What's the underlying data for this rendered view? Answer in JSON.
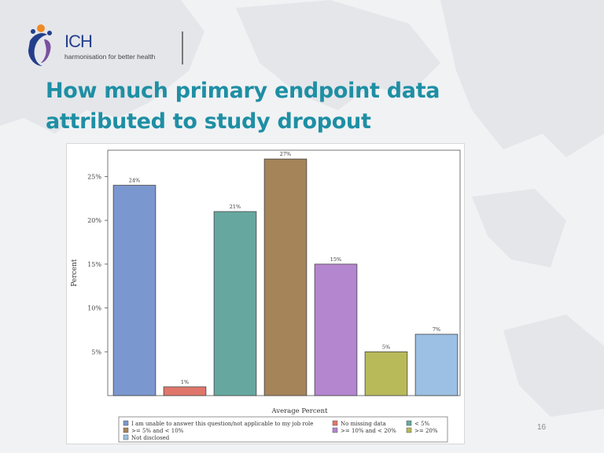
{
  "logo": {
    "name": "ICH",
    "tagline": "harmonisation for better health"
  },
  "title_lines": [
    "How much primary endpoint data",
    "attributed to study dropout"
  ],
  "page_number": "16",
  "colors": {
    "title": "#1e8fa4",
    "logo_blue": "#243e8c",
    "logo_orange": "#f08a24"
  },
  "chart_data": {
    "type": "bar",
    "ylabel": "Percent",
    "xlabel": "Average Percent",
    "ylim": [
      0,
      28
    ],
    "yticks": [
      5,
      10,
      15,
      20,
      25
    ],
    "ytick_labels": [
      "5%",
      "10%",
      "15%",
      "20%",
      "25%"
    ],
    "grid": false,
    "legend_position": "bottom",
    "bars": [
      {
        "category": "I am unable to answer this question/not applicable to my job role",
        "value": 24,
        "label": "24%",
        "color": "#7b97cf"
      },
      {
        "category": "No missing data",
        "value": 1,
        "label": "1%",
        "color": "#e0766b"
      },
      {
        "category": "< 5%",
        "value": 21,
        "label": "21%",
        "color": "#66a8a0"
      },
      {
        "category": ">= 5% and < 10%",
        "value": 27,
        "label": "27%",
        "color": "#a5845a"
      },
      {
        "category": ">= 10% and < 20%",
        "value": 15,
        "label": "15%",
        "color": "#b486cf"
      },
      {
        "category": ">= 20%",
        "value": 5,
        "label": "5%",
        "color": "#b8ba5a"
      },
      {
        "category": "Not disclosed",
        "value": 7,
        "label": "7%",
        "color": "#9bc0e3"
      }
    ],
    "legend_rows": [
      [
        0,
        1,
        2
      ],
      [
        3,
        4,
        5
      ],
      [
        6
      ]
    ]
  }
}
